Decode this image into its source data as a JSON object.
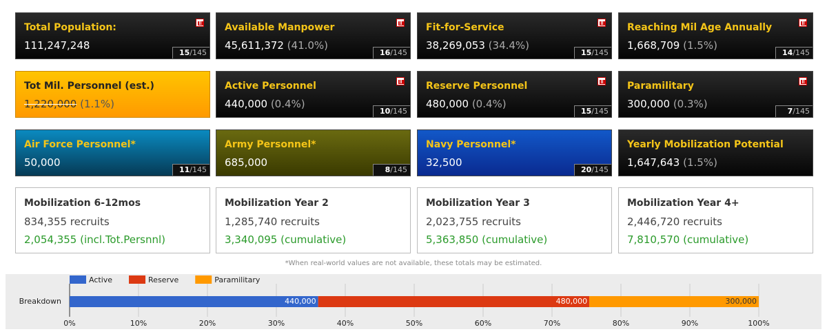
{
  "cards": [
    {
      "title": "Total Population:",
      "value": "111,247,248",
      "rank": "15",
      "rank_of": "/145",
      "theme": "dark",
      "icon": true
    },
    {
      "title": "Available Manpower",
      "value": "45,611,372",
      "pct": "(41.0%)",
      "rank": "16",
      "rank_of": "/145",
      "theme": "dark",
      "icon": true
    },
    {
      "title": "Fit-for-Service",
      "value": "38,269,053",
      "pct": "(34.4%)",
      "rank": "15",
      "rank_of": "/145",
      "theme": "dark",
      "icon": true
    },
    {
      "title": "Reaching Mil Age Annually",
      "value": "1,668,709",
      "pct": "(1.5%)",
      "rank": "14",
      "rank_of": "/145",
      "theme": "dark",
      "icon": true
    },
    {
      "title": "Tot Mil. Personnel (est.)",
      "value": "1,220,000",
      "pct": "(1.1%)",
      "theme": "orange",
      "icon": false
    },
    {
      "title": "Active Personnel",
      "value": "440,000",
      "pct": "(0.4%)",
      "rank": "10",
      "rank_of": "/145",
      "theme": "dark",
      "icon": true
    },
    {
      "title": "Reserve Personnel",
      "value": "480,000",
      "pct": "(0.4%)",
      "rank": "15",
      "rank_of": "/145",
      "theme": "dark",
      "icon": true
    },
    {
      "title": "Paramilitary",
      "value": "300,000",
      "pct": "(0.3%)",
      "rank": "7",
      "rank_of": "/145",
      "theme": "dark",
      "icon": true
    },
    {
      "title": "Air Force Personnel*",
      "value": "50,000",
      "rank": "11",
      "rank_of": "/145",
      "theme": "air",
      "icon": false
    },
    {
      "title": "Army Personnel*",
      "value": "685,000",
      "rank": "8",
      "rank_of": "/145",
      "theme": "army",
      "icon": false
    },
    {
      "title": "Navy Personnel*",
      "value": "32,500",
      "rank": "20",
      "rank_of": "/145",
      "theme": "navy",
      "icon": false
    },
    {
      "title": "Yearly Mobilization Potential",
      "value": "1,647,643",
      "pct": "(1.5%)",
      "theme": "dark",
      "icon": false
    }
  ],
  "mobilization": [
    {
      "title": "Mobilization 6-12mos",
      "recruits": "834,355 recruits",
      "cumulative": "2,054,355 (incl.Tot.Persnnl)"
    },
    {
      "title": "Mobilization Year 2",
      "recruits": "1,285,740 recruits",
      "cumulative": "3,340,095 (cumulative)"
    },
    {
      "title": "Mobilization Year 3",
      "recruits": "2,023,755 recruits",
      "cumulative": "5,363,850 (cumulative)"
    },
    {
      "title": "Mobilization Year 4+",
      "recruits": "2,446,720 recruits",
      "cumulative": "7,810,570 (cumulative)"
    }
  ],
  "note": "*When real-world values are not available, these totals may be estimated.",
  "chart_data": {
    "type": "bar",
    "orientation": "horizontal",
    "stacking": "percent",
    "categories": [
      "Breakdown"
    ],
    "series": [
      {
        "name": "Active",
        "color": "#3366cc",
        "values": [
          440000
        ],
        "value_labels": [
          "440,000"
        ]
      },
      {
        "name": "Reserve",
        "color": "#dc3912",
        "values": [
          480000
        ],
        "value_labels": [
          "480,000"
        ]
      },
      {
        "name": "Paramilitary",
        "color": "#ff9900",
        "values": [
          300000
        ],
        "value_labels": [
          "300,000"
        ]
      }
    ],
    "xlim": [
      0,
      100
    ],
    "xticks": [
      {
        "value": 0,
        "label": "0%"
      },
      {
        "value": 10,
        "label": "10%"
      },
      {
        "value": 20,
        "label": "20%"
      },
      {
        "value": 30,
        "label": "30%"
      },
      {
        "value": 40,
        "label": "40%"
      },
      {
        "value": 50,
        "label": "50%"
      },
      {
        "value": 60,
        "label": "60%"
      },
      {
        "value": 70,
        "label": "70%"
      },
      {
        "value": 80,
        "label": "80%"
      },
      {
        "value": 90,
        "label": "90%"
      },
      {
        "value": 100,
        "label": "100%"
      }
    ],
    "grid": true,
    "legend": "top"
  }
}
